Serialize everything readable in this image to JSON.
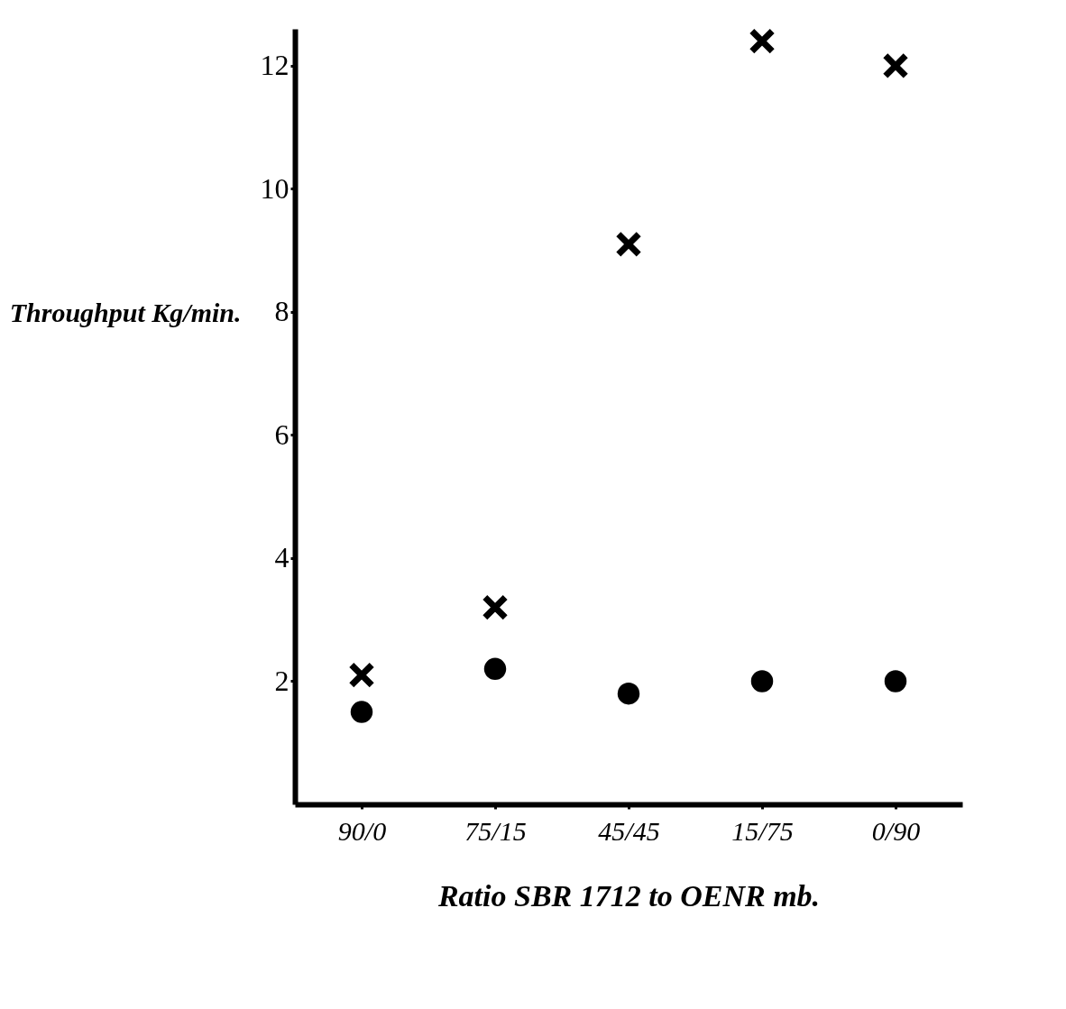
{
  "chart_data": {
    "type": "scatter",
    "xlabel": "Ratio SBR 1712 to OENR mb.",
    "ylabel": "Throughput Kg/min.",
    "categories": [
      "90/0",
      "75/15",
      "45/45",
      "15/75",
      "0/90"
    ],
    "ylim": [
      0,
      12.6
    ],
    "yticks": [
      2,
      4,
      6,
      8,
      10,
      12
    ],
    "grid": false,
    "series": [
      {
        "color": "#000000",
        "marker": "cross",
        "values": [
          2.1,
          3.2,
          9.1,
          12.4,
          12.0
        ]
      },
      {
        "color": "#000000",
        "marker": "circle",
        "values": [
          1.5,
          2.2,
          1.8,
          2.0,
          2.0
        ]
      }
    ]
  }
}
